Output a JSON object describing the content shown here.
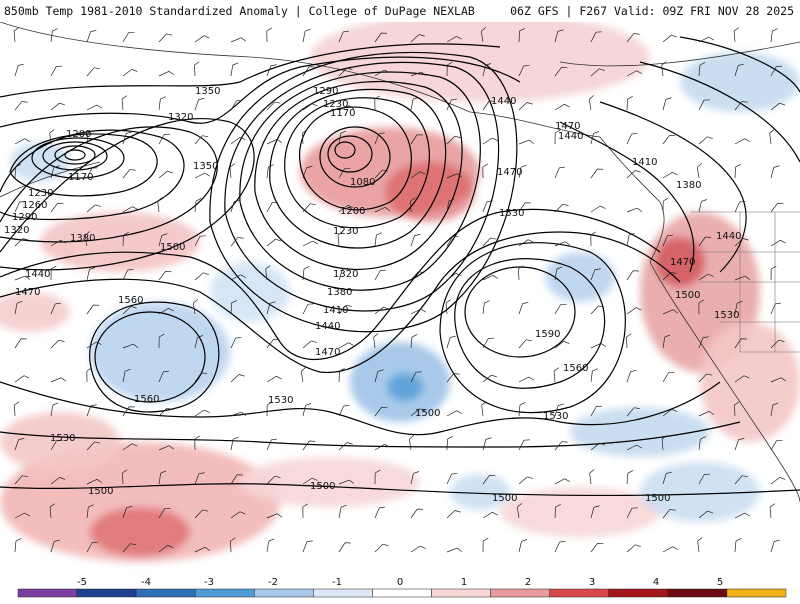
{
  "header": {
    "title_left": "850mb Temp 1981-2010 Standardized Anomaly | College of DuPage NEXLAB",
    "title_right": "06Z GFS | F267 Valid: 09Z FRI NOV 28 2025"
  },
  "colorbar": {
    "ticks": [
      "-5",
      "-4",
      "-3",
      "-2",
      "-1",
      "0",
      "1",
      "2",
      "3",
      "4",
      "5"
    ],
    "colors": [
      "#7a3fa0",
      "#1f3f8f",
      "#2f6fb5",
      "#4f9bd6",
      "#a9c8ea",
      "#dce8f6",
      "#ffffff",
      "#f7d6d6",
      "#ea9c9c",
      "#d6494c",
      "#a3161c",
      "#6b0a10",
      "#f2b318"
    ]
  },
  "height_labels": [
    "1350",
    "1320",
    "1200",
    "1170",
    "1230",
    "1260",
    "1290",
    "1320",
    "1380",
    "1440",
    "1470",
    "1560",
    "1560",
    "1530",
    "1530",
    "1500",
    "1290",
    "1230",
    "1170",
    "1080",
    "1200",
    "1230",
    "1320",
    "1380",
    "1410",
    "1440",
    "1470",
    "1350",
    "1500",
    "1440",
    "1470",
    "1440",
    "1410",
    "1380",
    "1530",
    "1470",
    "1590",
    "1560",
    "1530",
    "1500",
    "1500",
    "1500",
    "1440",
    "1470",
    "1500",
    "1530"
  ]
}
